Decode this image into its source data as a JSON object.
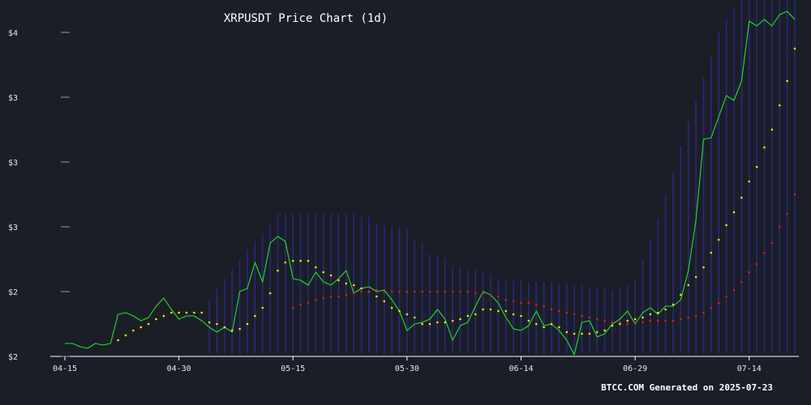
{
  "chart_data": {
    "type": "line",
    "title": "XRPUSDT Price Chart (1d)",
    "footer": "BTCC.COM Generated on 2025-07-23",
    "x_start": "2025-04-15",
    "xticks": [
      "04-15",
      "04-30",
      "05-15",
      "05-30",
      "06-14",
      "06-29",
      "07-14"
    ],
    "yticks": [
      {
        "value": 2.0,
        "label": "$2"
      },
      {
        "value": 2.4,
        "label": "$2"
      },
      {
        "value": 2.8,
        "label": "$3"
      },
      {
        "value": 3.2,
        "label": "$3"
      },
      {
        "value": 3.6,
        "label": "$3"
      },
      {
        "value": 4.0,
        "label": "$4"
      }
    ],
    "ylim": [
      2.0,
      4.0
    ],
    "colors": {
      "background": "#1b1e27",
      "price": "#22e02a",
      "sar": "#ffe600",
      "ma": "#e01b1b",
      "band": "#2a2a8f",
      "axis": "#ffffff"
    },
    "series": [
      {
        "style": "line",
        "values": [
          2.08,
          2.08,
          2.06,
          2.05,
          2.08,
          2.07,
          2.08,
          2.26,
          2.27,
          2.25,
          2.22,
          2.24,
          2.31,
          2.36,
          2.29,
          2.23,
          2.25,
          2.25,
          2.22,
          2.18,
          2.15,
          2.18,
          2.15,
          2.4,
          2.42,
          2.58,
          2.46,
          2.7,
          2.74,
          2.71,
          2.48,
          2.47,
          2.44,
          2.52,
          2.46,
          2.44,
          2.48,
          2.53,
          2.39,
          2.42,
          2.43,
          2.4,
          2.41,
          2.35,
          2.28,
          2.16,
          2.2,
          2.21,
          2.23,
          2.29,
          2.23,
          2.1,
          2.19,
          2.21,
          2.31,
          2.4,
          2.38,
          2.33,
          2.24,
          2.17,
          2.16,
          2.19,
          2.28,
          2.19,
          2.2,
          2.16,
          2.1,
          2.01,
          2.21,
          2.22,
          2.12,
          2.14,
          2.2,
          2.23,
          2.28,
          2.2,
          2.27,
          2.3,
          2.26,
          2.31,
          2.31,
          2.35,
          2.53,
          2.84,
          3.34,
          3.35,
          3.48,
          3.61,
          3.58,
          3.7,
          4.07,
          4.04,
          4.08,
          4.04,
          4.11,
          4.13,
          4.08
        ]
      },
      {
        "style": "dots",
        "values": [
          null,
          null,
          null,
          null,
          null,
          null,
          null,
          2.1,
          2.13,
          2.16,
          2.18,
          2.2,
          2.23,
          2.25,
          2.27,
          2.27,
          2.27,
          2.27,
          2.27,
          2.21,
          2.2,
          2.18,
          2.16,
          2.17,
          2.2,
          2.25,
          2.3,
          2.39,
          2.53,
          2.58,
          2.59,
          2.59,
          2.59,
          2.55,
          2.52,
          2.5,
          2.47,
          2.45,
          2.44,
          2.42,
          2.4,
          2.37,
          2.34,
          2.3,
          2.28,
          2.26,
          2.24,
          2.2,
          2.2,
          2.21,
          2.21,
          2.22,
          2.23,
          2.25,
          2.26,
          2.29,
          2.29,
          2.28,
          2.28,
          2.26,
          2.25,
          2.22,
          2.2,
          2.18,
          2.2,
          2.18,
          2.15,
          2.14,
          2.14,
          2.14,
          2.15,
          2.16,
          2.19,
          2.2,
          2.22,
          2.23,
          2.24,
          2.26,
          2.27,
          2.29,
          2.32,
          2.38,
          2.44,
          2.49,
          2.55,
          2.64,
          2.72,
          2.81,
          2.89,
          2.98,
          3.08,
          3.17,
          3.29,
          3.4,
          3.55,
          3.7,
          3.9
        ]
      },
      {
        "style": "dots",
        "values": [
          null,
          null,
          null,
          null,
          null,
          null,
          null,
          null,
          null,
          null,
          null,
          null,
          null,
          null,
          null,
          null,
          null,
          null,
          null,
          null,
          null,
          null,
          null,
          null,
          null,
          null,
          null,
          null,
          null,
          null,
          2.3,
          2.32,
          2.33,
          2.35,
          2.36,
          2.37,
          2.37,
          2.38,
          2.39,
          2.4,
          2.4,
          2.41,
          2.4,
          2.4,
          2.4,
          2.4,
          2.4,
          2.4,
          2.4,
          2.4,
          2.4,
          2.4,
          2.4,
          2.4,
          2.39,
          2.39,
          2.38,
          2.37,
          2.35,
          2.34,
          2.33,
          2.33,
          2.32,
          2.31,
          2.29,
          2.28,
          2.27,
          2.26,
          2.25,
          2.24,
          2.23,
          2.22,
          2.21,
          2.21,
          2.2,
          2.21,
          2.21,
          2.22,
          2.22,
          2.22,
          2.22,
          2.23,
          2.24,
          2.25,
          2.27,
          2.3,
          2.33,
          2.37,
          2.41,
          2.46,
          2.52,
          2.57,
          2.64,
          2.7,
          2.8,
          2.88,
          3.0
        ]
      }
    ],
    "band": {
      "upper": [
        null,
        null,
        null,
        null,
        null,
        null,
        null,
        null,
        null,
        null,
        null,
        null,
        null,
        null,
        null,
        null,
        null,
        null,
        null,
        2.35,
        2.42,
        2.48,
        2.54,
        2.6,
        2.66,
        2.71,
        2.76,
        2.82,
        2.88,
        2.88,
        2.88,
        2.88,
        2.88,
        2.88,
        2.88,
        2.88,
        2.88,
        2.88,
        2.88,
        2.86,
        2.86,
        2.82,
        2.81,
        2.8,
        2.8,
        2.79,
        2.72,
        2.7,
        2.63,
        2.62,
        2.61,
        2.56,
        2.56,
        2.53,
        2.53,
        2.52,
        2.51,
        2.48,
        2.47,
        2.47,
        2.47,
        2.46,
        2.46,
        2.46,
        2.46,
        2.45,
        2.45,
        2.44,
        2.44,
        2.43,
        2.43,
        2.43,
        2.41,
        2.42,
        2.44,
        2.47,
        2.6,
        2.72,
        2.85,
        3.0,
        3.14,
        3.3,
        3.45,
        3.58,
        3.72,
        3.85,
        4.0,
        4.08,
        4.15,
        4.2,
        4.22,
        4.22,
        4.22,
        4.22,
        4.22,
        4.22,
        4.22
      ],
      "lower": [
        null,
        null,
        null,
        null,
        null,
        null,
        null,
        null,
        null,
        null,
        null,
        null,
        null,
        null,
        null,
        null,
        null,
        null,
        null,
        2.02,
        2.02,
        2.02,
        2.02,
        2.02,
        2.02,
        2.02,
        2.02,
        2.02,
        2.02,
        2.02,
        2.02,
        2.02,
        2.02,
        2.02,
        2.02,
        2.02,
        2.02,
        2.02,
        2.02,
        2.02,
        2.02,
        2.02,
        2.02,
        2.02,
        2.02,
        2.02,
        2.02,
        2.02,
        2.02,
        2.02,
        2.02,
        2.02,
        2.02,
        2.02,
        2.02,
        2.02,
        2.02,
        2.02,
        2.02,
        2.02,
        2.02,
        2.02,
        2.02,
        2.02,
        2.02,
        2.02,
        2.02,
        2.02,
        2.02,
        2.02,
        2.02,
        2.02,
        2.02,
        2.02,
        2.02,
        2.02,
        2.02,
        2.02,
        2.02,
        2.02,
        2.02,
        2.02,
        2.02,
        2.02,
        2.02,
        2.02,
        2.02,
        2.02,
        2.02,
        2.02,
        2.02,
        2.02,
        2.02,
        2.02,
        2.02,
        2.02,
        2.02
      ]
    }
  }
}
